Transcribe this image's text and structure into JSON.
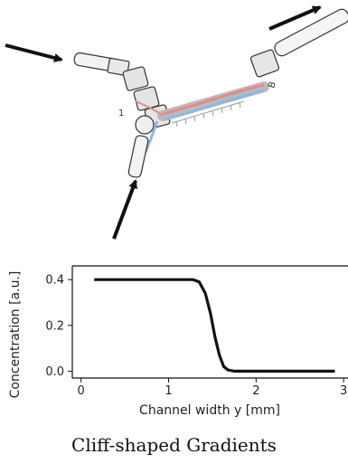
{
  "caption": "Cliff-shaped Gradients",
  "device_labels": [
    "1",
    "B"
  ],
  "chart_data": {
    "type": "line",
    "title": "",
    "xlabel": "Channel width y [mm]",
    "ylabel": "Concentration [a.u.]",
    "xlim": [
      -0.1,
      3.05
    ],
    "ylim": [
      -0.03,
      0.46
    ],
    "xticks": [
      0,
      1,
      2,
      3
    ],
    "yticks": [
      0.0,
      0.2,
      0.4
    ],
    "ytick_labels": [
      "0.0",
      "0.2",
      "0.4"
    ],
    "grid": false,
    "series": [
      {
        "x": [
          0.15,
          0.5,
          1.0,
          1.28,
          1.35,
          1.42,
          1.48,
          1.53,
          1.58,
          1.63,
          1.68,
          1.75,
          2.0,
          2.5,
          2.9
        ],
        "y": [
          0.4,
          0.4,
          0.4,
          0.4,
          0.39,
          0.34,
          0.25,
          0.15,
          0.07,
          0.02,
          0.005,
          0.0,
          0.0,
          0.0,
          0.0
        ]
      }
    ]
  }
}
